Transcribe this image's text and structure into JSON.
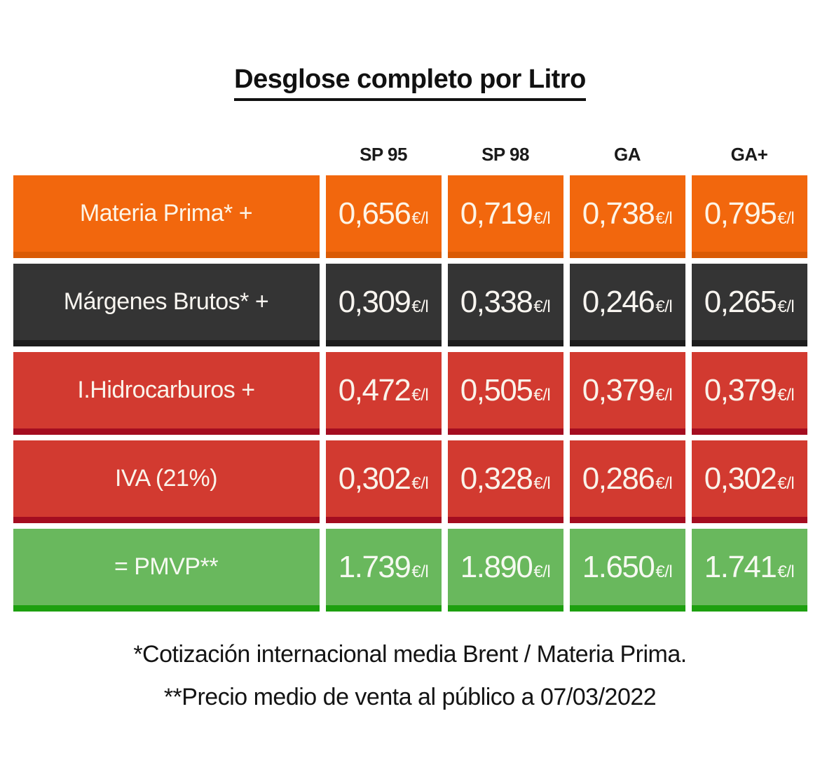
{
  "title": "Desglose completo por Litro",
  "unit_label": "€/l",
  "columns": [
    "SP 95",
    "SP 98",
    "GA",
    "GA+"
  ],
  "rows": [
    {
      "label": "Materia Prima* +",
      "display": [
        "0,656",
        "0,719",
        "0,738",
        "0,795"
      ],
      "bg": "#f2670d",
      "strip": "#da5a05",
      "text_color": "#fdf4e6"
    },
    {
      "label": "Márgenes Brutos* +",
      "display": [
        "0,309",
        "0,338",
        "0,246",
        "0,265"
      ],
      "bg": "#343434",
      "strip": "#1d1d1d",
      "text_color": "#f8f5f0"
    },
    {
      "label": "I.Hidrocarburos +",
      "display": [
        "0,472",
        "0,505",
        "0,379",
        "0,379"
      ],
      "bg": "#d23a30",
      "strip": "#a40d20",
      "text_color": "#faf3ea"
    },
    {
      "label": "IVA (21%)",
      "display": [
        "0,302",
        "0,328",
        "0,286",
        "0,302"
      ],
      "bg": "#d23a30",
      "strip": "#a40d20",
      "text_color": "#faf3ea"
    },
    {
      "label": "= PMVP**",
      "display": [
        "1.739",
        "1.890",
        "1.650",
        "1.741"
      ],
      "bg": "#69b85d",
      "strip": "#1da00f",
      "text_color": "#f6f9f1"
    }
  ],
  "footnotes": [
    "*Cotización internacional media Brent / Materia Prima.",
    "**Precio medio de venta al público a 07/03/2022"
  ],
  "chart_data": {
    "type": "table",
    "title": "Desglose completo por Litro",
    "columns": [
      "SP 95",
      "SP 98",
      "GA",
      "GA+"
    ],
    "unit": "€/l",
    "rows": [
      {
        "label": "Materia Prima* +",
        "values": [
          0.656,
          0.719,
          0.738,
          0.795
        ]
      },
      {
        "label": "Márgenes Brutos* +",
        "values": [
          0.309,
          0.338,
          0.246,
          0.265
        ]
      },
      {
        "label": "I.Hidrocarburos +",
        "values": [
          0.472,
          0.505,
          0.379,
          0.379
        ]
      },
      {
        "label": "IVA (21%)",
        "values": [
          0.302,
          0.328,
          0.286,
          0.302
        ]
      },
      {
        "label": "= PMVP**",
        "values": [
          1.739,
          1.89,
          1.65,
          1.741
        ]
      }
    ],
    "footnotes": [
      "*Cotización internacional media Brent / Materia Prima.",
      "**Precio medio de venta al público a 07/03/2022"
    ]
  }
}
